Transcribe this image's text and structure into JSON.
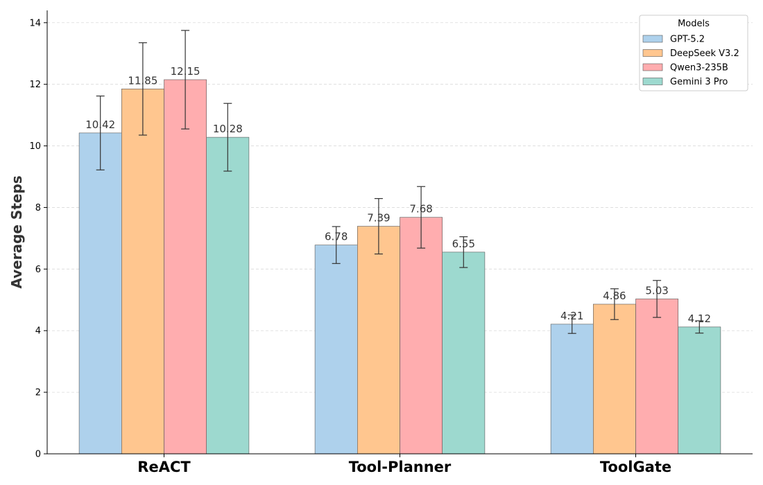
{
  "chart_data": {
    "type": "bar",
    "title": "",
    "xlabel": "",
    "ylabel": "Average Steps",
    "ylim": [
      0,
      14.4
    ],
    "yticks": [
      0,
      2,
      4,
      6,
      8,
      10,
      12,
      14
    ],
    "grid": "y, dashed",
    "categories": [
      "ReACT",
      "Tool-Planner",
      "ToolGate"
    ],
    "legend": {
      "title": "Models",
      "placement": "top-right"
    },
    "series": [
      {
        "name": "GPT-5.2",
        "color": "#aed1ec",
        "values": [
          10.42,
          6.78,
          4.21
        ],
        "errors": [
          1.2,
          0.6,
          0.3
        ]
      },
      {
        "name": "DeepSeek V3.2",
        "color": "#ffc68f",
        "values": [
          11.85,
          7.39,
          4.86
        ],
        "errors": [
          1.5,
          0.9,
          0.5
        ]
      },
      {
        "name": "Qwen3-235B",
        "color": "#ffadaf",
        "values": [
          12.15,
          7.68,
          5.03
        ],
        "errors": [
          1.6,
          1.0,
          0.6
        ]
      },
      {
        "name": "Gemini 3 Pro",
        "color": "#9dd9cf",
        "values": [
          10.28,
          6.55,
          4.12
        ],
        "errors": [
          1.1,
          0.5,
          0.2
        ]
      }
    ]
  }
}
